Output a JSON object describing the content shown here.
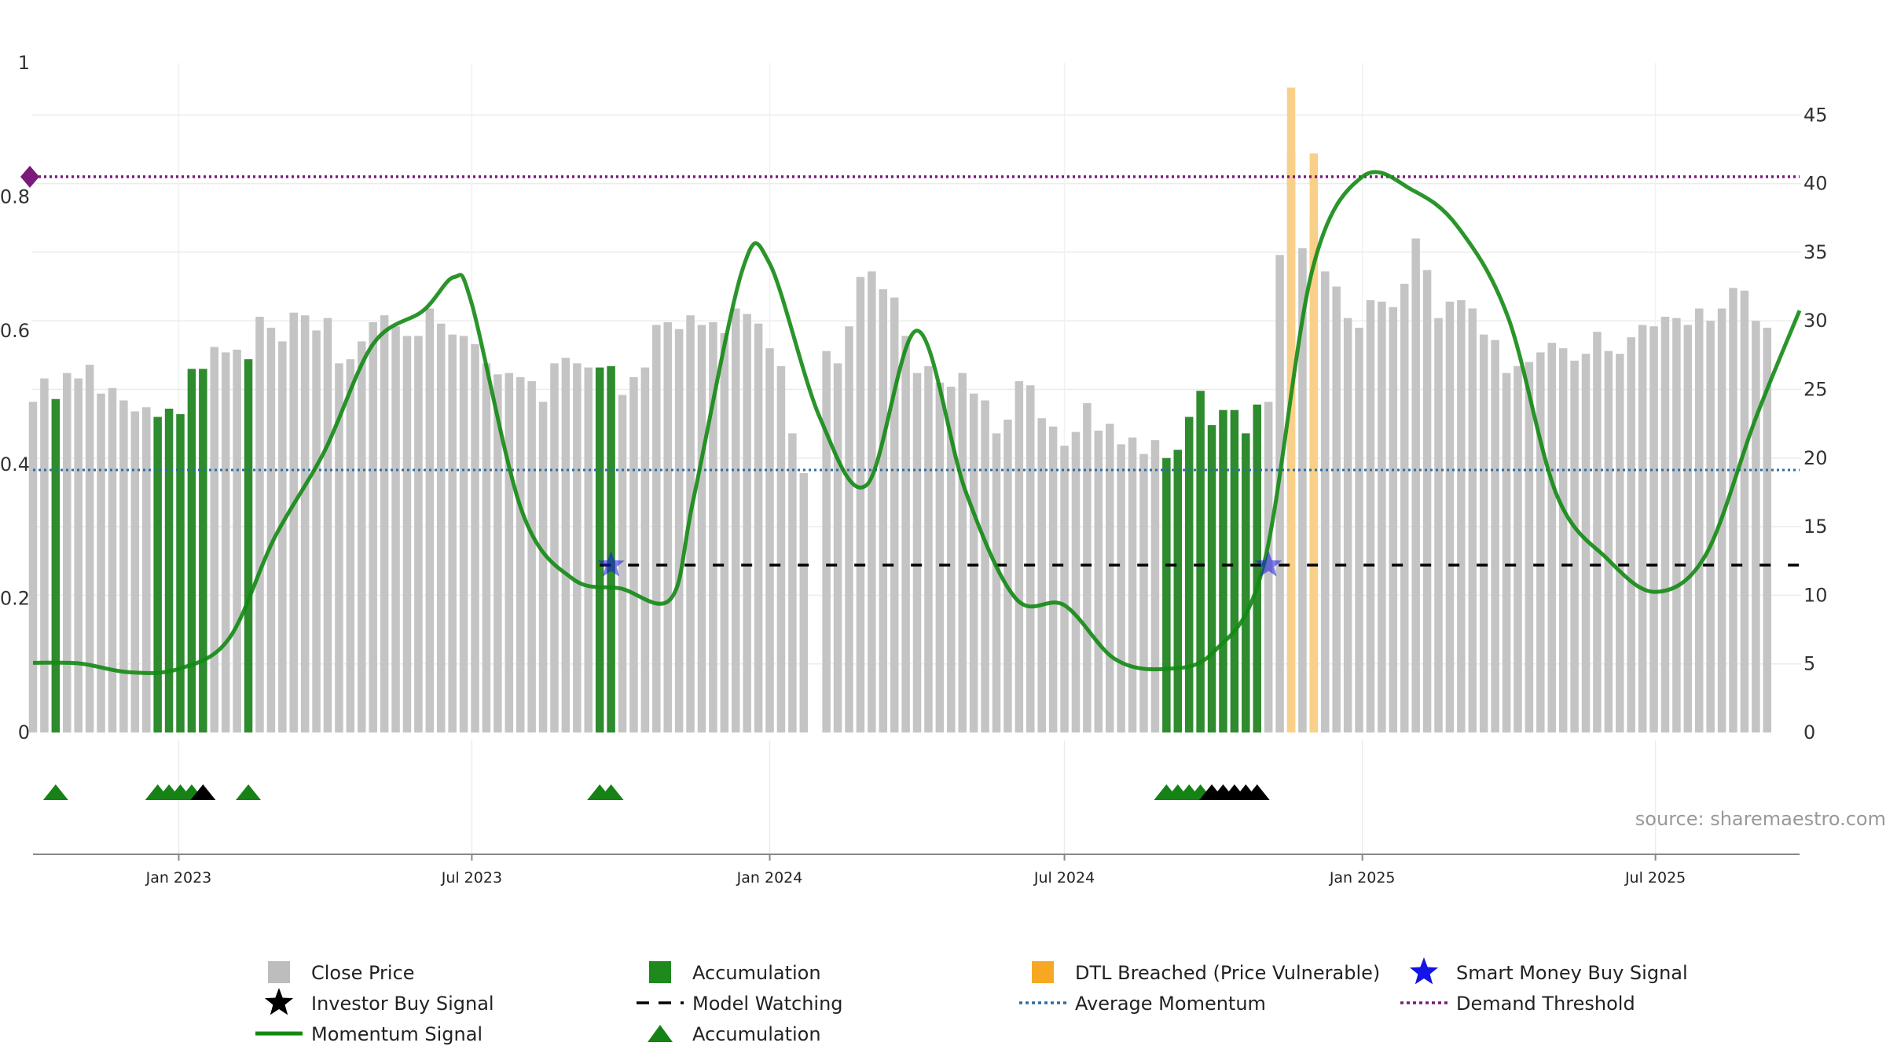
{
  "chart_data": {
    "type": "bar",
    "y_left_ticks": [
      "0",
      "0.2",
      "0.4",
      "0.6",
      "0.8",
      "1"
    ],
    "y_left_range": [
      0,
      1
    ],
    "y_right_ticks": [
      "0",
      "5",
      "10",
      "15",
      "20",
      "25",
      "30",
      "35",
      "40",
      "45"
    ],
    "y_right_range": [
      0,
      48.8
    ],
    "x_tick_labels": [
      "Jan 2023",
      "Jul 2023",
      "Jan 2024",
      "Jul 2024",
      "Jan 2025",
      "Jul 2025"
    ],
    "x_tick_dates": [
      "2023-01-01",
      "2023-07-01",
      "2024-01-01",
      "2024-07-01",
      "2025-01-01",
      "2025-07-01"
    ],
    "x_range": [
      "2022-10-03",
      "2025-09-28"
    ],
    "grid": true,
    "close_price": [
      [
        "2022-10-03",
        24.1
      ],
      [
        "2022-10-10",
        25.8
      ],
      [
        "2022-10-17",
        24.3
      ],
      [
        "2022-10-24",
        26.2
      ],
      [
        "2022-10-31",
        25.8
      ],
      [
        "2022-11-07",
        26.8
      ],
      [
        "2022-11-14",
        24.7
      ],
      [
        "2022-11-21",
        25.1
      ],
      [
        "2022-11-28",
        24.2
      ],
      [
        "2022-12-05",
        23.4
      ],
      [
        "2022-12-12",
        23.7
      ],
      [
        "2022-12-19",
        23.0
      ],
      [
        "2022-12-26",
        23.6
      ],
      [
        "2023-01-02",
        23.2
      ],
      [
        "2023-01-09",
        26.5
      ],
      [
        "2023-01-16",
        26.5
      ],
      [
        "2023-01-23",
        28.1
      ],
      [
        "2023-01-30",
        27.7
      ],
      [
        "2023-02-06",
        27.9
      ],
      [
        "2023-02-13",
        27.2
      ],
      [
        "2023-02-20",
        30.3
      ],
      [
        "2023-02-27",
        29.5
      ],
      [
        "2023-03-06",
        28.5
      ],
      [
        "2023-03-13",
        30.6
      ],
      [
        "2023-03-20",
        30.4
      ],
      [
        "2023-03-27",
        29.3
      ],
      [
        "2023-04-03",
        30.2
      ],
      [
        "2023-04-10",
        26.9
      ],
      [
        "2023-04-17",
        27.2
      ],
      [
        "2023-04-24",
        28.5
      ],
      [
        "2023-05-01",
        29.9
      ],
      [
        "2023-05-08",
        30.4
      ],
      [
        "2023-05-15",
        29.6
      ],
      [
        "2023-05-22",
        28.9
      ],
      [
        "2023-05-29",
        28.9
      ],
      [
        "2023-06-05",
        30.9
      ],
      [
        "2023-06-12",
        29.8
      ],
      [
        "2023-06-19",
        29.0
      ],
      [
        "2023-06-26",
        28.9
      ],
      [
        "2023-07-03",
        28.3
      ],
      [
        "2023-07-10",
        26.9
      ],
      [
        "2023-07-17",
        26.1
      ],
      [
        "2023-07-24",
        26.2
      ],
      [
        "2023-07-31",
        25.9
      ],
      [
        "2023-08-07",
        25.6
      ],
      [
        "2023-08-14",
        24.1
      ],
      [
        "2023-08-21",
        26.9
      ],
      [
        "2023-08-28",
        27.3
      ],
      [
        "2023-09-04",
        26.9
      ],
      [
        "2023-09-11",
        26.6
      ],
      [
        "2023-09-18",
        26.6
      ],
      [
        "2023-09-25",
        26.7
      ],
      [
        "2023-10-02",
        24.6
      ],
      [
        "2023-10-09",
        25.9
      ],
      [
        "2023-10-16",
        26.6
      ],
      [
        "2023-10-23",
        29.7
      ],
      [
        "2023-10-30",
        29.9
      ],
      [
        "2023-11-06",
        29.4
      ],
      [
        "2023-11-13",
        30.4
      ],
      [
        "2023-11-20",
        29.7
      ],
      [
        "2023-11-27",
        29.9
      ],
      [
        "2023-12-04",
        29.1
      ],
      [
        "2023-12-11",
        30.9
      ],
      [
        "2023-12-18",
        30.5
      ],
      [
        "2023-12-25",
        29.8
      ],
      [
        "2024-01-01",
        28.0
      ],
      [
        "2024-01-08",
        26.7
      ],
      [
        "2024-01-15",
        21.8
      ],
      [
        "2024-01-22",
        18.9
      ],
      [
        "2024-01-29",
        0
      ],
      [
        "2024-02-05",
        27.8
      ],
      [
        "2024-02-12",
        26.9
      ],
      [
        "2024-02-19",
        29.6
      ],
      [
        "2024-02-26",
        33.2
      ],
      [
        "2024-03-04",
        33.6
      ],
      [
        "2024-03-11",
        32.3
      ],
      [
        "2024-03-18",
        31.7
      ],
      [
        "2024-03-25",
        28.9
      ],
      [
        "2024-04-01",
        26.2
      ],
      [
        "2024-04-08",
        26.7
      ],
      [
        "2024-04-15",
        25.5
      ],
      [
        "2024-04-22",
        25.2
      ],
      [
        "2024-04-29",
        26.2
      ],
      [
        "2024-05-06",
        24.7
      ],
      [
        "2024-05-13",
        24.2
      ],
      [
        "2024-05-20",
        21.8
      ],
      [
        "2024-05-27",
        22.8
      ],
      [
        "2024-06-03",
        25.6
      ],
      [
        "2024-06-10",
        25.3
      ],
      [
        "2024-06-17",
        22.9
      ],
      [
        "2024-06-24",
        22.3
      ],
      [
        "2024-07-01",
        20.9
      ],
      [
        "2024-07-08",
        21.9
      ],
      [
        "2024-07-15",
        24.0
      ],
      [
        "2024-07-22",
        22.0
      ],
      [
        "2024-07-29",
        22.5
      ],
      [
        "2024-08-05",
        21.0
      ],
      [
        "2024-08-12",
        21.5
      ],
      [
        "2024-08-19",
        20.3
      ],
      [
        "2024-08-26",
        21.3
      ],
      [
        "2024-09-02",
        20.0
      ],
      [
        "2024-09-09",
        20.6
      ],
      [
        "2024-09-16",
        23.0
      ],
      [
        "2024-09-23",
        24.9
      ],
      [
        "2024-09-30",
        22.4
      ],
      [
        "2024-10-07",
        23.5
      ],
      [
        "2024-10-14",
        23.5
      ],
      [
        "2024-10-21",
        21.8
      ],
      [
        "2024-10-28",
        23.9
      ],
      [
        "2024-11-04",
        24.1
      ],
      [
        "2024-11-11",
        34.8
      ],
      [
        "2024-11-18",
        42.2
      ],
      [
        "2024-11-25",
        35.3
      ],
      [
        "2024-12-02",
        37.5
      ],
      [
        "2024-12-09",
        33.6
      ],
      [
        "2024-12-16",
        32.5
      ],
      [
        "2024-12-23",
        30.2
      ],
      [
        "2024-12-30",
        29.5
      ],
      [
        "2025-01-06",
        31.5
      ],
      [
        "2025-01-13",
        31.4
      ],
      [
        "2025-01-20",
        31.0
      ],
      [
        "2025-01-27",
        32.7
      ],
      [
        "2025-02-03",
        36.0
      ],
      [
        "2025-02-10",
        33.7
      ],
      [
        "2025-02-17",
        30.2
      ],
      [
        "2025-02-24",
        31.4
      ],
      [
        "2025-03-03",
        31.5
      ],
      [
        "2025-03-10",
        30.9
      ],
      [
        "2025-03-17",
        29.0
      ],
      [
        "2025-03-24",
        28.6
      ],
      [
        "2025-03-31",
        26.2
      ],
      [
        "2025-04-07",
        26.7
      ],
      [
        "2025-04-14",
        27.0
      ],
      [
        "2025-04-21",
        27.7
      ],
      [
        "2025-04-28",
        28.4
      ],
      [
        "2025-05-05",
        28.0
      ],
      [
        "2025-05-12",
        27.1
      ],
      [
        "2025-05-19",
        27.6
      ],
      [
        "2025-05-26",
        29.2
      ],
      [
        "2025-06-02",
        27.8
      ],
      [
        "2025-06-09",
        27.6
      ],
      [
        "2025-06-16",
        28.8
      ],
      [
        "2025-06-23",
        29.7
      ],
      [
        "2025-06-30",
        29.6
      ],
      [
        "2025-07-07",
        30.3
      ],
      [
        "2025-07-14",
        30.2
      ],
      [
        "2025-07-21",
        29.7
      ],
      [
        "2025-07-28",
        30.9
      ],
      [
        "2025-08-04",
        30.0
      ],
      [
        "2025-08-11",
        30.9
      ],
      [
        "2025-08-18",
        32.4
      ],
      [
        "2025-08-25",
        32.2
      ],
      [
        "2025-09-01",
        30.0
      ],
      [
        "2025-09-08",
        29.5
      ]
    ],
    "accumulation_dates": [
      "2022-10-17",
      "2022-12-19",
      "2022-12-26",
      "2023-01-02",
      "2023-01-09",
      "2023-01-16",
      "2023-02-13",
      "2023-09-18",
      "2023-09-25",
      "2024-09-02",
      "2024-09-09",
      "2024-09-16",
      "2024-09-23",
      "2024-09-30",
      "2024-10-07",
      "2024-10-14",
      "2024-10-21",
      "2024-10-28"
    ],
    "dtl_breached_dates": [
      "2024-11-18",
      "2024-12-02"
    ],
    "dtl_breached_values": [
      47.0,
      42.2
    ],
    "momentum_signal": [
      [
        "2022-10-03",
        0.104
      ],
      [
        "2022-11-01",
        0.103
      ],
      [
        "2022-12-01",
        0.09
      ],
      [
        "2023-01-01",
        0.095
      ],
      [
        "2023-02-01",
        0.14
      ],
      [
        "2023-03-01",
        0.29
      ],
      [
        "2023-04-01",
        0.42
      ],
      [
        "2023-05-01",
        0.58
      ],
      [
        "2023-06-01",
        0.63
      ],
      [
        "2023-06-20",
        0.68
      ],
      [
        "2023-07-01",
        0.64
      ],
      [
        "2023-08-01",
        0.33
      ],
      [
        "2023-09-01",
        0.23
      ],
      [
        "2023-10-01",
        0.215
      ],
      [
        "2023-11-01",
        0.2
      ],
      [
        "2023-11-15",
        0.35
      ],
      [
        "2023-12-15",
        0.69
      ],
      [
        "2024-01-01",
        0.7
      ],
      [
        "2024-02-01",
        0.47
      ],
      [
        "2024-03-01",
        0.37
      ],
      [
        "2024-04-01",
        0.6
      ],
      [
        "2024-05-01",
        0.36
      ],
      [
        "2024-06-01",
        0.2
      ],
      [
        "2024-07-01",
        0.19
      ],
      [
        "2024-08-01",
        0.11
      ],
      [
        "2024-09-01",
        0.095
      ],
      [
        "2024-10-01",
        0.12
      ],
      [
        "2024-11-01",
        0.25
      ],
      [
        "2024-12-01",
        0.69
      ],
      [
        "2025-01-01",
        0.83
      ],
      [
        "2025-02-01",
        0.81
      ],
      [
        "2025-03-01",
        0.755
      ],
      [
        "2025-04-01",
        0.62
      ],
      [
        "2025-05-01",
        0.355
      ],
      [
        "2025-06-01",
        0.26
      ],
      [
        "2025-07-01",
        0.21
      ],
      [
        "2025-08-01",
        0.265
      ],
      [
        "2025-09-01",
        0.47
      ],
      [
        "2025-09-28",
        0.63
      ]
    ],
    "average_momentum": 0.392,
    "demand_threshold": 0.83,
    "model_watching": {
      "start": "2023-09-18",
      "end": "2025-09-28",
      "value": 0.25
    },
    "smart_money_buy_signals": [
      [
        "2023-09-25",
        0.25
      ],
      [
        "2024-11-04",
        0.25
      ]
    ],
    "accumulation_markers": [
      "2022-10-17",
      "2022-12-19",
      "2022-12-26",
      "2023-01-02",
      "2023-01-09",
      "2023-02-13",
      "2023-09-18",
      "2023-09-25",
      "2024-09-02",
      "2024-09-09",
      "2024-09-16",
      "2024-09-23"
    ],
    "investor_buy_markers": [
      "2023-01-16",
      "2024-09-30",
      "2024-10-07",
      "2024-10-14",
      "2024-10-21",
      "2024-10-28"
    ],
    "colors": {
      "close_price": "#c4c4c4",
      "accumulation": "#2e8b2e",
      "dtl_breached": "#f9d08a",
      "momentum": "#138a13",
      "average_momentum": "#2b6fa8",
      "demand_threshold": "#7a1a7a",
      "smart_money": "#1515e0",
      "investor_buy": "#000000",
      "model_watching": "#000000",
      "triangle": "#168216"
    },
    "legend": [
      {
        "id": "close",
        "label": "Close Price",
        "symbol": "square",
        "color": "#bdbdbd"
      },
      {
        "id": "accum-bar",
        "label": "Accumulation",
        "symbol": "square",
        "color": "#1e8a1e"
      },
      {
        "id": "dtl",
        "label": "DTL Breached (Price Vulnerable)",
        "symbol": "square",
        "color": "#f6a823"
      },
      {
        "id": "smart",
        "label": "Smart Money Buy Signal",
        "symbol": "star",
        "color": "#1414e6"
      },
      {
        "id": "investor",
        "label": "Investor Buy Signal",
        "symbol": "star",
        "color": "#000000"
      },
      {
        "id": "watching",
        "label": "Model Watching",
        "symbol": "dash",
        "color": "#000000"
      },
      {
        "id": "avgmom",
        "label": "Average Momentum",
        "symbol": "dot",
        "color": "#2b6fa8"
      },
      {
        "id": "demand",
        "label": "Demand Threshold",
        "symbol": "dot",
        "color": "#7a1a7a"
      },
      {
        "id": "momentum",
        "label": "Momentum Signal",
        "symbol": "line",
        "color": "#138a13"
      },
      {
        "id": "accum-tri",
        "label": "Accumulation",
        "symbol": "triangle",
        "color": "#168216"
      }
    ],
    "source_label": "source: sharemaestro.com"
  }
}
